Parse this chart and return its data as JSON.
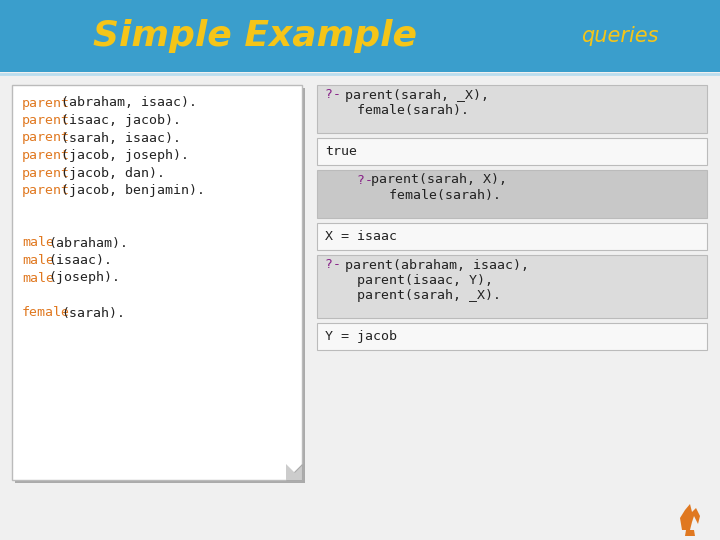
{
  "title": "Simple Example",
  "title_color": "#F5C518",
  "queries_label": "queries",
  "queries_color": "#F5C518",
  "header_bg": "#3A9ECC",
  "body_bg": "#F0F0F0",
  "left_panel_bg": "#FFFFFF",
  "left_panel_border": "#CCCCCC",
  "code_orange": "#E07820",
  "code_black": "#222222",
  "code_purple": "#882288",
  "right_box_query_bg": "#DCDCDC",
  "right_box_query_bg2": "#C8C8C8",
  "right_box_answer_bg": "#F8F8F8",
  "right_box_border": "#BBBBBB",
  "left_lines": [
    [
      [
        "parent",
        "orange"
      ],
      [
        "(abraham, isaac).",
        "black"
      ]
    ],
    [
      [
        "parent",
        "orange"
      ],
      [
        "(isaac, jacob).",
        "black"
      ]
    ],
    [
      [
        "parent",
        "orange"
      ],
      [
        "(sarah, isaac).",
        "black"
      ]
    ],
    [
      [
        "parent",
        "orange"
      ],
      [
        "(jacob, joseph).",
        "black"
      ]
    ],
    [
      [
        "parent",
        "orange"
      ],
      [
        "(jacob, dan).",
        "black"
      ]
    ],
    [
      [
        "parent",
        "orange"
      ],
      [
        "(jacob, benjamin).",
        "black"
      ]
    ],
    [],
    [],
    [
      [
        "male",
        "orange"
      ],
      [
        "(abraham).",
        "black"
      ]
    ],
    [
      [
        "male",
        "orange"
      ],
      [
        "(isaac).",
        "black"
      ]
    ],
    [
      [
        "male",
        "orange"
      ],
      [
        "(joseph).",
        "black"
      ]
    ],
    [],
    [
      [
        "female",
        "orange"
      ],
      [
        "(sarah).",
        "black"
      ]
    ]
  ],
  "query_boxes": [
    {
      "type": "query",
      "indent": 0,
      "lines": [
        [
          [
            "?- ",
            "purple"
          ],
          [
            "parent(sarah, _X),",
            "black"
          ]
        ],
        [
          [
            "    female(sarah).",
            "black"
          ]
        ]
      ]
    },
    {
      "type": "answer",
      "indent": 0,
      "lines": [
        [
          [
            "true",
            "black"
          ]
        ]
      ]
    },
    {
      "type": "query2",
      "indent": 1,
      "lines": [
        [
          [
            "    ?- ",
            "purple"
          ],
          [
            "parent(sarah, X),",
            "black"
          ]
        ],
        [
          [
            "        female(sarah).",
            "black"
          ]
        ]
      ]
    },
    {
      "type": "answer",
      "indent": 0,
      "lines": [
        [
          [
            "X = isaac",
            "black"
          ]
        ]
      ]
    },
    {
      "type": "query",
      "indent": 0,
      "lines": [
        [
          [
            "?- ",
            "purple"
          ],
          [
            "parent(abraham, isaac),",
            "black"
          ]
        ],
        [
          [
            "    parent(isaac, Y),",
            "black"
          ]
        ],
        [
          [
            "    parent(sarah, _X).",
            "black"
          ]
        ]
      ]
    },
    {
      "type": "answer",
      "indent": 0,
      "lines": [
        [
          [
            "Y = jacob",
            "black"
          ]
        ]
      ]
    }
  ]
}
